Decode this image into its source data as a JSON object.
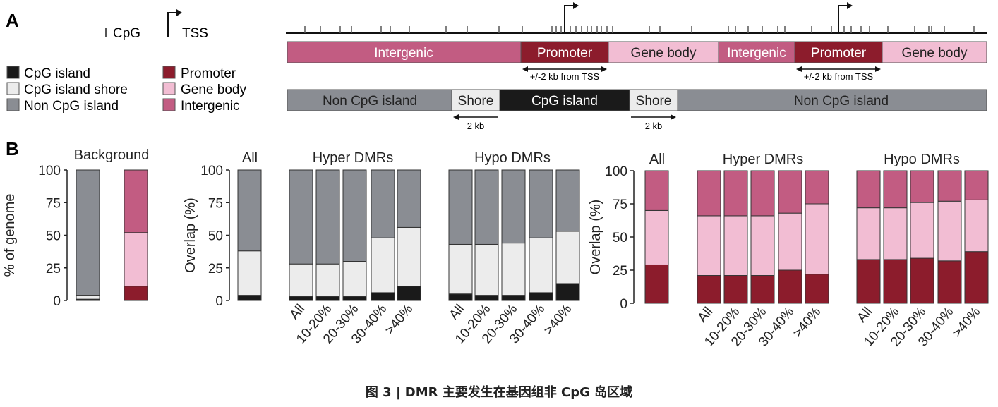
{
  "colors": {
    "cpg_island": "#1a1a1a",
    "shore": "#ececec",
    "non_cpg": "#8a8d93",
    "promoter": "#8c1c2c",
    "gene_body": "#f2bdd3",
    "intergenic": "#c25c82"
  },
  "panel_a": {
    "label": "A",
    "legend_cpg": "CpG",
    "legend_tss": "TSS",
    "legend": {
      "left": [
        "CpG island",
        "CpG island shore",
        "Non CpG island"
      ],
      "right": [
        "Promoter",
        "Gene body",
        "Intergenic"
      ]
    },
    "genomic_track": [
      "Intergenic",
      "Promoter",
      "Gene body",
      "Intergenic",
      "Promoter",
      "Gene body"
    ],
    "promoter_note": "+/-2 kb from TSS",
    "cpg_track": [
      "Non CpG island",
      "Shore",
      "CpG island",
      "Shore",
      "Non CpG island"
    ],
    "shore_note": "2 kb"
  },
  "panel_b": {
    "label": "B"
  },
  "chart_data": [
    {
      "type": "bar",
      "stacked": true,
      "title": "Background",
      "ylabel": "% of genome",
      "ylim": [
        0,
        100
      ],
      "yticks": [
        0,
        25,
        50,
        75,
        100
      ],
      "categories": [
        "",
        ""
      ],
      "series": [
        {
          "name": "CpG island",
          "values": [
            1,
            null
          ]
        },
        {
          "name": "CpG island shore",
          "values": [
            3,
            null
          ]
        },
        {
          "name": "Non CpG island",
          "values": [
            96,
            null
          ]
        },
        {
          "name": "Promoter",
          "values": [
            null,
            11
          ]
        },
        {
          "name": "Gene body",
          "values": [
            null,
            41
          ]
        },
        {
          "name": "Intergenic",
          "values": [
            null,
            48
          ]
        }
      ]
    },
    {
      "type": "bar",
      "stacked": true,
      "ylabel": "Overlap (%)",
      "ylim": [
        0,
        100
      ],
      "yticks": [
        0,
        25,
        50,
        75,
        100
      ],
      "groups": [
        "All",
        "Hyper DMRs",
        "Hypo DMRs"
      ],
      "categories": [
        "",
        "All",
        "10-20%",
        "20-30%",
        "30-40%",
        ">40%",
        "All",
        "10-20%",
        "20-30%",
        "30-40%",
        ">40%"
      ],
      "series": [
        {
          "name": "CpG island",
          "values": [
            4,
            3,
            3,
            3,
            6,
            11,
            5,
            4,
            4,
            6,
            13
          ]
        },
        {
          "name": "CpG island shore",
          "values": [
            34,
            25,
            25,
            27,
            42,
            45,
            38,
            39,
            40,
            42,
            40
          ]
        },
        {
          "name": "Non CpG island",
          "values": [
            62,
            72,
            72,
            70,
            52,
            44,
            57,
            57,
            56,
            52,
            47
          ]
        }
      ]
    },
    {
      "type": "bar",
      "stacked": true,
      "ylabel": "Overlap (%)",
      "ylim": [
        0,
        100
      ],
      "yticks": [
        0,
        25,
        50,
        75,
        100
      ],
      "groups": [
        "All",
        "Hyper DMRs",
        "Hypo DMRs"
      ],
      "categories": [
        "",
        "All",
        "10-20%",
        "20-30%",
        "30-40%",
        ">40%",
        "All",
        "10-20%",
        "20-30%",
        "30-40%",
        ">40%"
      ],
      "series": [
        {
          "name": "Promoter",
          "values": [
            29,
            21,
            21,
            21,
            25,
            22,
            33,
            33,
            34,
            32,
            39
          ]
        },
        {
          "name": "Gene body",
          "values": [
            41,
            45,
            45,
            45,
            43,
            53,
            39,
            39,
            42,
            45,
            39
          ]
        },
        {
          "name": "Intergenic",
          "values": [
            30,
            34,
            34,
            34,
            32,
            25,
            28,
            28,
            24,
            23,
            22
          ]
        }
      ]
    }
  ],
  "caption": "图 3 | DMR 主要发生在基因组非 CpG 岛区域"
}
